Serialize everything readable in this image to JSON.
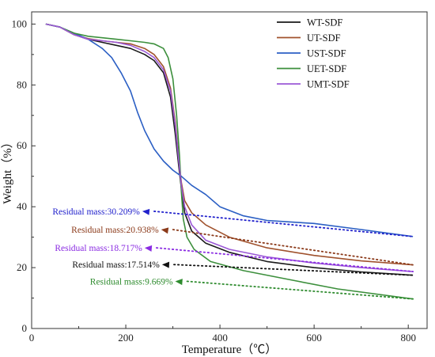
{
  "chart_data": {
    "type": "line",
    "title": "",
    "xlabel": "Temperature（℃）",
    "ylabel": "Weight（%）",
    "xlim": [
      0,
      840
    ],
    "ylim": [
      0,
      104
    ],
    "x_ticks": [
      0,
      200,
      400,
      600,
      800
    ],
    "y_ticks": [
      0,
      20,
      40,
      60,
      80,
      100
    ],
    "grid": false,
    "legend_position": "top-right",
    "series": [
      {
        "name": "WT-SDF",
        "color": "#1a1a1a",
        "points": [
          [
            30,
            100
          ],
          [
            60,
            99
          ],
          [
            90,
            96.5
          ],
          [
            120,
            95
          ],
          [
            150,
            94
          ],
          [
            180,
            93
          ],
          [
            210,
            92
          ],
          [
            240,
            90
          ],
          [
            260,
            88
          ],
          [
            280,
            84
          ],
          [
            295,
            76
          ],
          [
            305,
            64
          ],
          [
            312,
            54
          ],
          [
            318,
            46
          ],
          [
            325,
            38
          ],
          [
            340,
            32
          ],
          [
            370,
            28
          ],
          [
            420,
            25
          ],
          [
            500,
            22
          ],
          [
            600,
            20
          ],
          [
            700,
            18.6
          ],
          [
            810,
            17.5
          ]
        ]
      },
      {
        "name": "UT-SDF",
        "color": "#a0522d",
        "points": [
          [
            30,
            100
          ],
          [
            60,
            99
          ],
          [
            90,
            96.5
          ],
          [
            120,
            95.2
          ],
          [
            150,
            94.5
          ],
          [
            180,
            94
          ],
          [
            210,
            93.5
          ],
          [
            240,
            92
          ],
          [
            260,
            90
          ],
          [
            280,
            86
          ],
          [
            295,
            79
          ],
          [
            305,
            68
          ],
          [
            312,
            57
          ],
          [
            318,
            48
          ],
          [
            325,
            42
          ],
          [
            340,
            38
          ],
          [
            370,
            34
          ],
          [
            420,
            30
          ],
          [
            500,
            26.5
          ],
          [
            600,
            24
          ],
          [
            700,
            22.2
          ],
          [
            810,
            20.9
          ]
        ]
      },
      {
        "name": "UST-SDF",
        "color": "#2b5fc4",
        "points": [
          [
            30,
            100
          ],
          [
            60,
            99
          ],
          [
            90,
            97
          ],
          [
            120,
            95
          ],
          [
            150,
            92
          ],
          [
            170,
            89
          ],
          [
            190,
            84
          ],
          [
            210,
            78
          ],
          [
            225,
            71
          ],
          [
            240,
            65
          ],
          [
            260,
            59
          ],
          [
            280,
            55
          ],
          [
            300,
            52
          ],
          [
            318,
            50
          ],
          [
            340,
            47
          ],
          [
            370,
            44
          ],
          [
            400,
            40
          ],
          [
            450,
            37
          ],
          [
            500,
            35.5
          ],
          [
            550,
            35
          ],
          [
            600,
            34.5
          ],
          [
            700,
            32.5
          ],
          [
            810,
            30.2
          ]
        ]
      },
      {
        "name": "UET-SDF",
        "color": "#3c8f3c",
        "points": [
          [
            30,
            100
          ],
          [
            60,
            99
          ],
          [
            90,
            97
          ],
          [
            120,
            96
          ],
          [
            150,
            95.5
          ],
          [
            180,
            95
          ],
          [
            210,
            94.5
          ],
          [
            240,
            94
          ],
          [
            260,
            93.5
          ],
          [
            280,
            92
          ],
          [
            290,
            89
          ],
          [
            300,
            82
          ],
          [
            308,
            70
          ],
          [
            314,
            57
          ],
          [
            318,
            45
          ],
          [
            322,
            36
          ],
          [
            330,
            30
          ],
          [
            345,
            26
          ],
          [
            380,
            22
          ],
          [
            450,
            19
          ],
          [
            550,
            16
          ],
          [
            650,
            13
          ],
          [
            810,
            9.7
          ]
        ]
      },
      {
        "name": "UMT-SDF",
        "color": "#9b59d6",
        "points": [
          [
            30,
            100
          ],
          [
            60,
            99
          ],
          [
            90,
            96.5
          ],
          [
            120,
            95
          ],
          [
            150,
            94.5
          ],
          [
            180,
            94
          ],
          [
            210,
            93
          ],
          [
            240,
            91
          ],
          [
            260,
            89
          ],
          [
            280,
            85
          ],
          [
            295,
            78
          ],
          [
            305,
            67
          ],
          [
            312,
            56
          ],
          [
            318,
            47
          ],
          [
            325,
            40
          ],
          [
            340,
            34
          ],
          [
            370,
            29
          ],
          [
            420,
            26
          ],
          [
            500,
            23.5
          ],
          [
            600,
            21.5
          ],
          [
            700,
            20
          ],
          [
            810,
            18.7
          ]
        ]
      }
    ],
    "annotations": [
      {
        "text": "Residual mass:30.209%",
        "color": "#2222cc",
        "x": 230,
        "y": 38.5,
        "target": [
          810,
          30.2
        ]
      },
      {
        "text": "Residual mass:20.938%",
        "color": "#8b3a1a",
        "x": 270,
        "y": 32.5,
        "target": [
          810,
          20.9
        ]
      },
      {
        "text": "Residual mass:18.717%",
        "color": "#8a2be2",
        "x": 235,
        "y": 26.5,
        "target": [
          810,
          18.7
        ]
      },
      {
        "text": "Residual mass:17.514%",
        "color": "#111111",
        "x": 272,
        "y": 21.0,
        "target": [
          810,
          17.5
        ]
      },
      {
        "text": "Residual mass:9.669%",
        "color": "#2e8b2e",
        "x": 300,
        "y": 15.5,
        "target": [
          810,
          9.7
        ]
      }
    ]
  }
}
